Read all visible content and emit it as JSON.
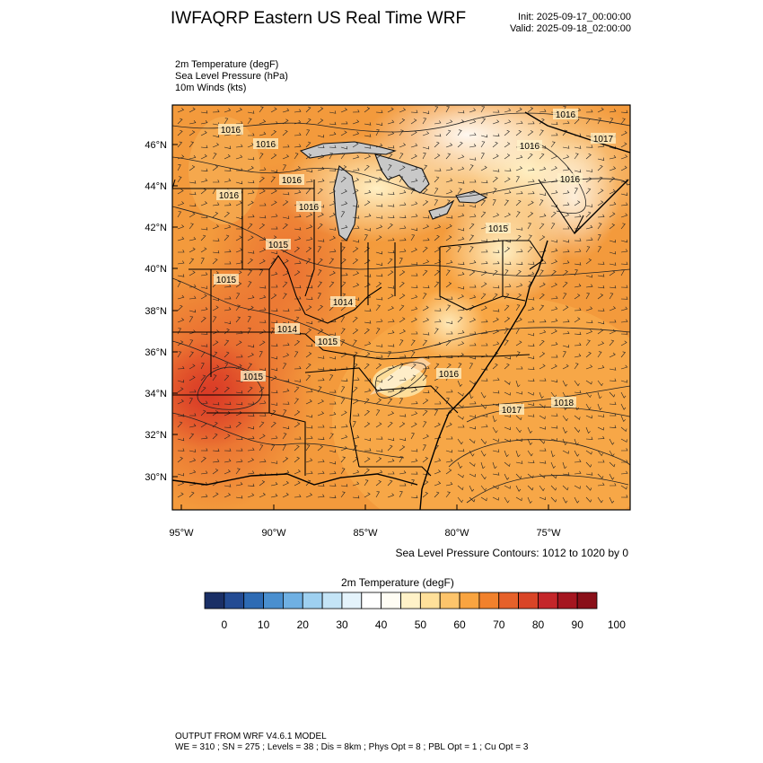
{
  "header": {
    "title": "IWFAQRP Eastern US Real Time WRF",
    "init": "Init: 2025-09-17_00:00:00",
    "valid": "Valid: 2025-09-18_02:00:00"
  },
  "fields": [
    "2m Temperature   (degF)",
    "Sea Level Pressure   (hPa)",
    "10m Winds   (kts)"
  ],
  "map": {
    "lat_labels": [
      "46°N",
      "44°N",
      "42°N",
      "40°N",
      "38°N",
      "36°N",
      "34°N",
      "32°N",
      "30°N"
    ],
    "lon_labels": [
      "95°W",
      "90°W",
      "85°W",
      "80°W",
      "75°W"
    ],
    "pressure_labels": [
      "1016",
      "1016",
      "1016",
      "1016",
      "1016",
      "1015",
      "1016",
      "1016",
      "1017",
      "1016",
      "1015",
      "1015",
      "1014",
      "1014",
      "1015",
      "1015",
      "1016",
      "1017",
      "1018"
    ],
    "contour_note": "Sea Level Pressure Contours: 1012 to 1020 by 0"
  },
  "colorbar": {
    "title": "2m Temperature  (degF)",
    "ticks": [
      "0",
      "10",
      "20",
      "30",
      "40",
      "50",
      "60",
      "70",
      "80",
      "90",
      "100"
    ],
    "colors": [
      "#1a2f66",
      "#234b93",
      "#2e6bb4",
      "#4a8fcf",
      "#6fb0e3",
      "#9ed0f0",
      "#c4e4f6",
      "#e4f3fb",
      "#ffffff",
      "#fffdf4",
      "#fff2c8",
      "#ffe09a",
      "#fdc46b",
      "#f9a440",
      "#f1812c",
      "#e6612a",
      "#d94527",
      "#c4262a",
      "#a51620",
      "#8a1019"
    ]
  },
  "footer": {
    "line1": "OUTPUT FROM WRF V4.6.1 MODEL",
    "line2": "WE = 310 ; SN = 275 ; Levels = 38 ; Dis = 8km ; Phys Opt = 8 ; PBL Opt = 1 ; Cu Opt = 3"
  }
}
